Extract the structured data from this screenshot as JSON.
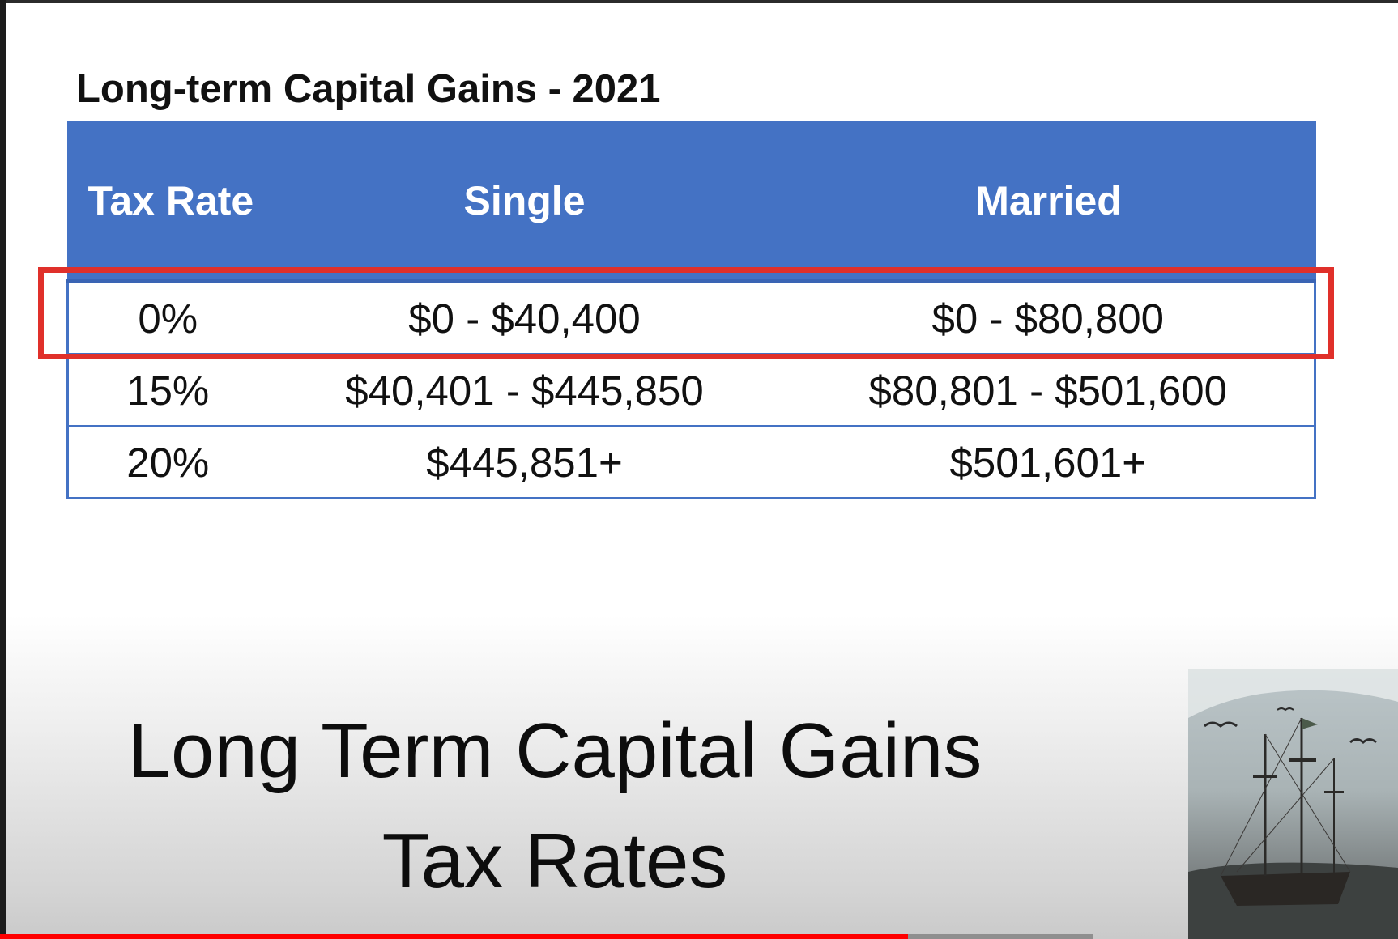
{
  "table": {
    "title": "Long-term Capital Gains - 2021",
    "headers": [
      "Tax Rate",
      "Single",
      "Married"
    ],
    "rows": [
      [
        "0%",
        "$0 - $40,400",
        "$0 - $80,800"
      ],
      [
        "15%",
        "$40,401 - $445,850",
        "$80,801 - $501,600"
      ],
      [
        "20%",
        "$445,851+",
        "$501,601+"
      ]
    ],
    "highlighted_row_index": 0
  },
  "caption": {
    "line1": "Long Term Capital Gains",
    "line2": "Tax Rates"
  },
  "video": {
    "progress_fraction": 0.83,
    "buffered_fraction": 1.0
  },
  "colors": {
    "header_bg": "#4472c4",
    "highlight": "#e0302a",
    "progress": "#ff0000"
  }
}
